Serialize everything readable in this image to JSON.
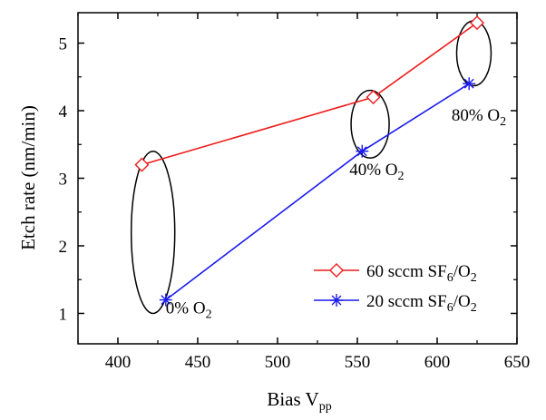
{
  "chart_data": {
    "type": "line",
    "xlabel": {
      "main": "Bias V",
      "sub": "pp"
    },
    "ylabel": "Etch rate (nm/min)",
    "xlim": [
      375,
      650
    ],
    "ylim": [
      0.55,
      5.45
    ],
    "x_ticks": [
      400,
      450,
      500,
      550,
      600,
      650
    ],
    "y_ticks": [
      1,
      2,
      3,
      4,
      5
    ],
    "grid": false,
    "legend_position": "bottom-right",
    "series": [
      {
        "legend_main": "60 sccm SF",
        "legend_sub1": "6",
        "legend_mid": "/O",
        "legend_sub2": "2",
        "color": "#ee1c1c",
        "marker": "diamond",
        "x": [
          415,
          560,
          625
        ],
        "y": [
          3.2,
          4.2,
          5.3
        ]
      },
      {
        "legend_main": "20 sccm SF",
        "legend_sub1": "6",
        "legend_mid": "/O",
        "legend_sub2": "2",
        "color": "#1a1aee",
        "marker": "asterisk",
        "x": [
          430,
          553,
          620
        ],
        "y": [
          1.2,
          3.4,
          4.4
        ]
      }
    ],
    "annotations": [
      {
        "main": "0% O",
        "sub": "2",
        "x": 430,
        "y": 1.0,
        "ex": 422,
        "ey": 2.2,
        "erx": 24,
        "ery": 1.2
      },
      {
        "main": "40% O",
        "sub": "2",
        "x": 545,
        "y": 3.05,
        "ex": 558,
        "ey": 3.8,
        "erx": 21,
        "ery": 0.5
      },
      {
        "main": "80% O",
        "sub": "2",
        "x": 609,
        "y": 3.85,
        "ex": 623,
        "ey": 4.85,
        "erx": 19,
        "ery": 0.48
      }
    ]
  }
}
